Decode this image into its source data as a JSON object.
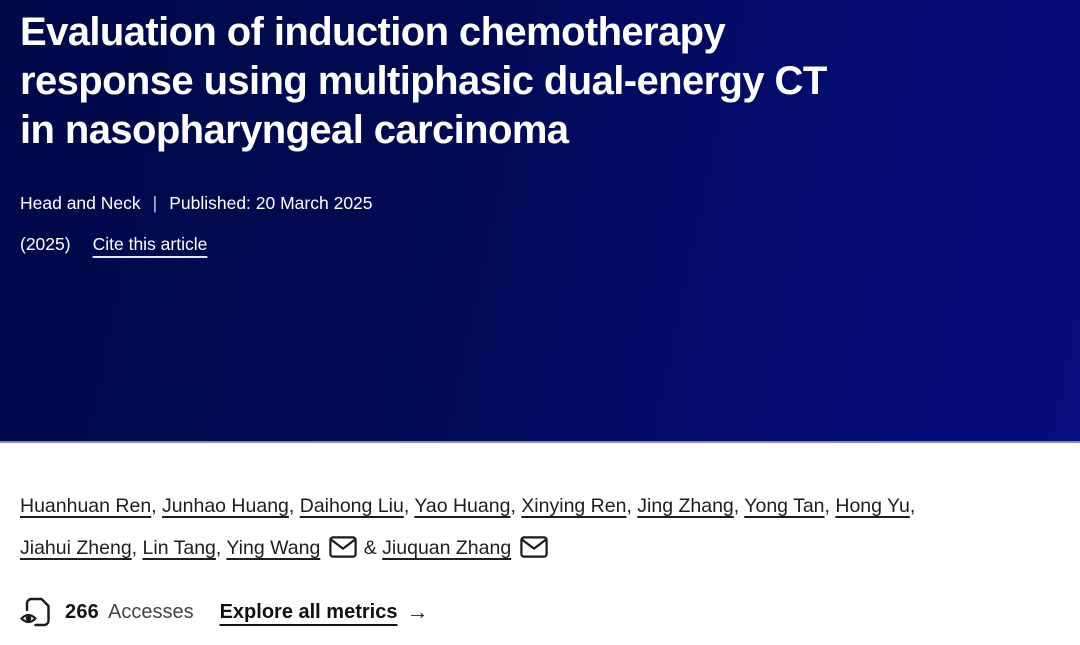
{
  "header": {
    "title_lines": [
      "Evaluation of induction chemotherapy",
      "response using multiphasic dual-energy CT",
      "in nasopharyngeal carcinoma"
    ],
    "journal": "Head and Neck",
    "separator": "|",
    "published": "Published: 20 March 2025",
    "year": "(2025)",
    "cite_link": "Cite this article",
    "colors": {
      "bg_gradient_start": "#00094a",
      "bg_gradient_end": "#050d80",
      "text": "#ffffff",
      "divider": "#8b8bb2"
    }
  },
  "authors": {
    "line1": [
      {
        "name": "Huanhuan Ren",
        "sep": ", "
      },
      {
        "name": "Junhao Huang",
        "sep": ", "
      },
      {
        "name": "Daihong Liu",
        "sep": ", "
      },
      {
        "name": "Yao Huang",
        "sep": ", "
      },
      {
        "name": "Xinying Ren",
        "sep": ", "
      },
      {
        "name": "Jing Zhang",
        "sep": ", "
      },
      {
        "name": "Yong Tan",
        "sep": ", "
      },
      {
        "name": "Hong Yu",
        "sep": ","
      }
    ],
    "line2": [
      {
        "name": "Jiahui Zheng",
        "sep": ", "
      },
      {
        "name": "Lin Tang",
        "sep": ", "
      },
      {
        "name": "Ying Wang",
        "email": true,
        "sep": " & "
      },
      {
        "name": "Jiuquan Zhang",
        "email": true,
        "sep": ""
      }
    ]
  },
  "metrics": {
    "accesses_count": "266",
    "accesses_label": "Accesses",
    "explore_link": "Explore all metrics",
    "arrow": "→"
  }
}
